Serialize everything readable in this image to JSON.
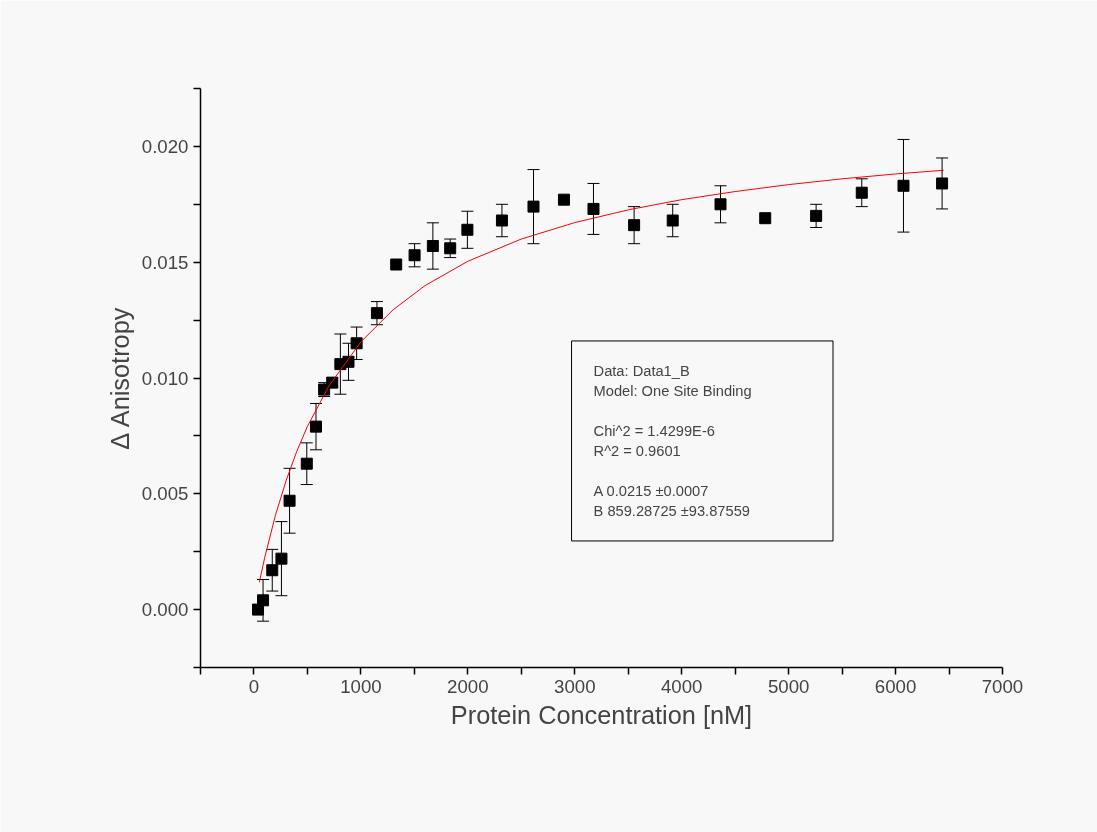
{
  "chart_data": {
    "type": "scatter",
    "xlabel": "Protein Concentration [nM]",
    "ylabel": "Δ Anisotropy",
    "xlim": [
      -500,
      7000
    ],
    "ylim": [
      -0.0025,
      0.0225
    ],
    "xticks": [
      {
        "value": -500,
        "label": null
      },
      0,
      {
        "value": 500,
        "label": null
      },
      1000,
      {
        "value": 1500,
        "label": null
      },
      2000,
      {
        "value": 2500,
        "label": null
      },
      3000,
      {
        "value": 3500,
        "label": null
      },
      4000,
      {
        "value": 4500,
        "label": null
      },
      5000,
      {
        "value": 5500,
        "label": null
      },
      6000,
      {
        "value": 6500,
        "label": null
      },
      7000
    ],
    "yticks": [
      {
        "value": -0.0025,
        "label": null
      },
      {
        "value": 0,
        "label": "0.000"
      },
      {
        "value": 0.0025,
        "label": null
      },
      {
        "value": 0.005,
        "label": "0.005"
      },
      {
        "value": 0.0075,
        "label": null
      },
      {
        "value": 0.01,
        "label": "0.010"
      },
      {
        "value": 0.0125,
        "label": null
      },
      {
        "value": 0.015,
        "label": "0.015"
      },
      {
        "value": 0.0175,
        "label": null
      },
      {
        "value": 0.02,
        "label": "0.020"
      },
      {
        "value": 0.0225,
        "label": null
      }
    ],
    "grid": false,
    "annotations": [
      "Data: Data1_B",
      "Model: One Site Binding",
      "Chi^2   =  1.4299E-6",
      "R^2     =  0.9601",
      "A         0.0215  ±0.0007",
      "B         859.28725        ±93.87559"
    ],
    "series": [
      {
        "marker": "square",
        "color": "#000000",
        "x": [
          38,
          85,
          171,
          257,
          333,
          494,
          580,
          656,
          732,
          808,
          884,
          960,
          1150,
          1330,
          1502,
          1673,
          1835,
          1996,
          2319,
          2614,
          2899,
          3175,
          3555,
          3916,
          4363,
          4781,
          5257,
          5684,
          6074,
          6435
        ],
        "values": [
          0.0,
          0.0004,
          0.0017,
          0.0022,
          0.0047,
          0.0063,
          0.0079,
          0.0095,
          0.0098,
          0.0106,
          0.0107,
          0.0115,
          0.0128,
          0.0149,
          0.0153,
          0.0157,
          0.0156,
          0.0164,
          0.0168,
          0.0174,
          0.0177,
          0.0173,
          0.0166,
          0.0168,
          0.0175,
          0.0169,
          0.017,
          0.018,
          0.0183,
          0.0184
        ],
        "errors": [
          0.0002,
          0.0009,
          0.0009,
          0.0016,
          0.0014,
          0.0009,
          0.001,
          0.0003,
          0.0002,
          0.0013,
          0.0008,
          0.0007,
          0.0005,
          null,
          0.0005,
          0.001,
          0.0004,
          0.0008,
          0.0007,
          0.0016,
          null,
          0.0011,
          0.0008,
          0.0007,
          0.0008,
          null,
          0.0005,
          0.0006,
          0.002,
          0.0011
        ]
      },
      {
        "type": "line",
        "color": "#ff0000",
        "x": [
          50,
          100,
          200,
          300,
          400,
          500,
          700,
          1000,
          1300,
          1600,
          2000,
          2500,
          3000,
          3500,
          4000,
          4500,
          5000,
          5500,
          6000,
          6450
        ],
        "values": [
          0.00118,
          0.00224,
          0.00406,
          0.00556,
          0.00683,
          0.00791,
          0.00965,
          0.01156,
          0.01294,
          0.01399,
          0.01504,
          0.016,
          0.01671,
          0.01726,
          0.0177,
          0.01805,
          0.01835,
          0.0186,
          0.01881,
          0.01897
        ]
      }
    ]
  }
}
